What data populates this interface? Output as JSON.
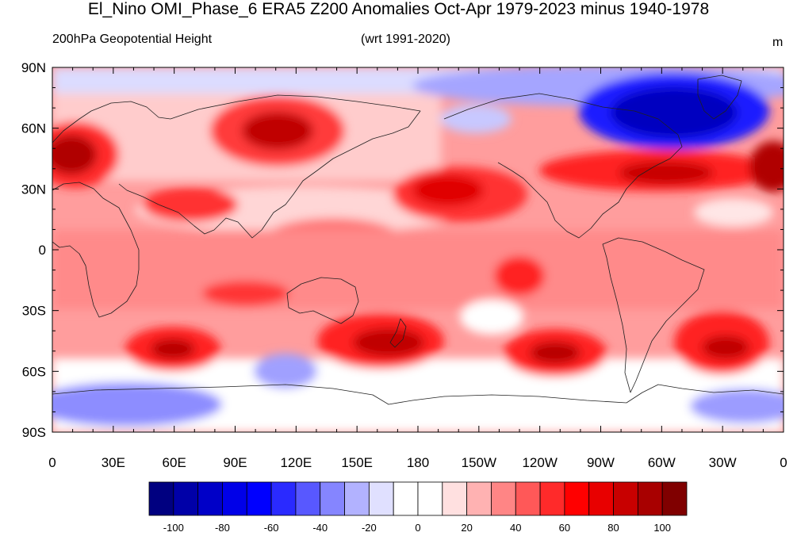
{
  "title": "El_Nino OMI_Phase_6 ERA5 Z200 Anomalies Oct-Apr 1979-2023 minus 1940-1978",
  "subtitle_left": "200hPa Geopotential Height",
  "subtitle_center": "(wrt 1991-2020)",
  "units": "m",
  "map": {
    "lat_ticks": [
      "90N",
      "60N",
      "30N",
      "0",
      "30S",
      "60S",
      "90S"
    ],
    "lon_ticks": [
      "0",
      "30E",
      "60E",
      "90E",
      "120E",
      "150E",
      "180",
      "150W",
      "120W",
      "90W",
      "60W",
      "30W",
      "0"
    ]
  },
  "chart_data": {
    "type": "heatmap",
    "title": "El_Nino OMI_Phase_6 ERA5 Z200 Anomalies Oct-Apr 1979-2023 minus 1940-1978",
    "variable": "200hPa Geopotential Height",
    "reference": "(wrt 1991-2020)",
    "units": "m",
    "x_range": [
      0,
      360
    ],
    "y_range": [
      -90,
      90
    ],
    "contour_levels": [
      -100,
      -90,
      -80,
      -70,
      -60,
      -50,
      -40,
      -30,
      -20,
      -10,
      0,
      10,
      20,
      30,
      40,
      50,
      60,
      70,
      80,
      90,
      100
    ],
    "colorbar_labels": [
      "-100",
      "-80",
      "-60",
      "-40",
      "-20",
      "0",
      "20",
      "40",
      "60",
      "80",
      "100"
    ],
    "colors": [
      "#000080",
      "#0000a8",
      "#0000c8",
      "#0000e8",
      "#0000ff",
      "#2a2aff",
      "#5858ff",
      "#8585ff",
      "#b2b2ff",
      "#e0e0ff",
      "#ffffff",
      "#ffffff",
      "#ffe0e0",
      "#ffb2b2",
      "#ff8585",
      "#ff5858",
      "#ff2a2a",
      "#ff0000",
      "#e80000",
      "#c80000",
      "#a80000",
      "#800000"
    ],
    "features": [
      {
        "lon": 10,
        "lat": 45,
        "value": 80
      },
      {
        "lon": 110,
        "lat": 55,
        "value": 70
      },
      {
        "lon": 65,
        "lat": 22,
        "value": 55
      },
      {
        "lon": 190,
        "lat": 30,
        "value": 60
      },
      {
        "lon": 207,
        "lat": 20,
        "value": 60
      },
      {
        "lon": 268,
        "lat": 36,
        "value": 70
      },
      {
        "lon": 350,
        "lat": 45,
        "value": 70
      },
      {
        "lon": 225,
        "lat": -12,
        "value": 55
      },
      {
        "lon": 80,
        "lat": -22,
        "value": 45
      },
      {
        "lon": 160,
        "lat": -43,
        "value": 75
      },
      {
        "lon": 60,
        "lat": -48,
        "value": 70
      },
      {
        "lon": 240,
        "lat": -50,
        "value": 75
      },
      {
        "lon": 338,
        "lat": -48,
        "value": 70
      },
      {
        "lon": 285,
        "lat": 65,
        "value": -100
      },
      {
        "lon": 195,
        "lat": 70,
        "value": -40
      },
      {
        "lon": 95,
        "lat": -58,
        "value": -30
      },
      {
        "lon": 15,
        "lat": -70,
        "value": -40
      },
      {
        "lon": 305,
        "lat": -75,
        "value": -20
      }
    ]
  }
}
